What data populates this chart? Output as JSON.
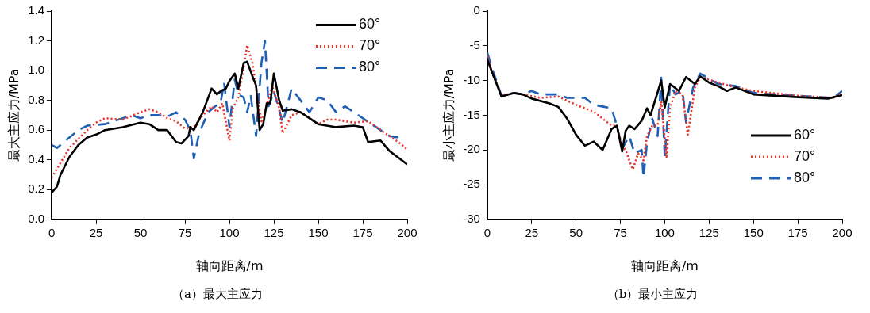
{
  "chart_data": [
    {
      "type": "line",
      "xlabel": "轴向距离/m",
      "ylabel": "最大主应力/MPa",
      "annotations": [
        "（a）最大主应力"
      ],
      "xlim": [
        0,
        200
      ],
      "xticks": [
        0,
        25,
        50,
        75,
        100,
        125,
        150,
        175,
        200
      ],
      "ylim": [
        0,
        1.4
      ],
      "yticks": [
        {
          "value": 0,
          "label": "0.0"
        },
        0.2,
        0.4,
        0.6,
        0.8,
        {
          "value": 1,
          "label": "1.0"
        },
        1.2,
        1.4
      ],
      "grid": false,
      "legend": "top right",
      "marker": "none",
      "series": [
        {
          "name": "60°",
          "color": "#000000",
          "line_style": "solid",
          "x": [
            0,
            3,
            5,
            10,
            15,
            20,
            25,
            30,
            40,
            50,
            55,
            60,
            65,
            70,
            73,
            77,
            78,
            80,
            85,
            90,
            93,
            95,
            98,
            100,
            103,
            105,
            108,
            110,
            113,
            115,
            117,
            119,
            121,
            123,
            125,
            128,
            130,
            135,
            140,
            145,
            150,
            160,
            170,
            175,
            178,
            185,
            190,
            200
          ],
          "values": [
            0.18,
            0.22,
            0.3,
            0.42,
            0.5,
            0.55,
            0.57,
            0.6,
            0.62,
            0.65,
            0.64,
            0.6,
            0.6,
            0.52,
            0.51,
            0.56,
            0.62,
            0.6,
            0.72,
            0.88,
            0.84,
            0.86,
            0.88,
            0.93,
            0.98,
            0.88,
            1.05,
            1.06,
            0.96,
            0.9,
            0.6,
            0.64,
            0.78,
            0.78,
            0.98,
            0.8,
            0.73,
            0.74,
            0.72,
            0.68,
            0.64,
            0.62,
            0.63,
            0.62,
            0.52,
            0.53,
            0.46,
            0.37
          ]
        },
        {
          "name": "70°",
          "color": "#e8332a",
          "line_style": "dotted",
          "x": [
            0,
            5,
            10,
            15,
            20,
            25,
            30,
            40,
            50,
            55,
            60,
            65,
            70,
            75,
            80,
            85,
            90,
            93,
            96,
            100,
            102,
            105,
            108,
            110,
            113,
            116,
            118,
            120,
            124,
            128,
            130,
            135,
            140,
            145,
            150,
            155,
            160,
            170,
            178,
            185,
            195,
            200
          ],
          "values": [
            0.28,
            0.38,
            0.48,
            0.54,
            0.6,
            0.65,
            0.68,
            0.67,
            0.72,
            0.74,
            0.72,
            0.68,
            0.66,
            0.61,
            0.62,
            0.7,
            0.76,
            0.72,
            0.78,
            0.53,
            0.75,
            0.82,
            1.02,
            1.17,
            1.05,
            0.8,
            0.66,
            0.72,
            0.9,
            0.75,
            0.58,
            0.7,
            0.72,
            0.68,
            0.64,
            0.67,
            0.67,
            0.65,
            0.66,
            0.6,
            0.52,
            0.47
          ]
        },
        {
          "name": "80°",
          "color": "#1f5fb4",
          "line_style": "dashed",
          "x": [
            0,
            3,
            5,
            10,
            15,
            20,
            30,
            40,
            45,
            50,
            55,
            60,
            65,
            70,
            75,
            78,
            80,
            83,
            88,
            92,
            95,
            97,
            100,
            103,
            105,
            108,
            110,
            112,
            115,
            118,
            120,
            122,
            125,
            130,
            135,
            140,
            145,
            150,
            155,
            160,
            165,
            170,
            180,
            190,
            195
          ],
          "values": [
            0.5,
            0.48,
            0.5,
            0.55,
            0.6,
            0.63,
            0.64,
            0.68,
            0.7,
            0.68,
            0.7,
            0.7,
            0.69,
            0.72,
            0.67,
            0.6,
            0.41,
            0.58,
            0.72,
            0.76,
            0.78,
            0.92,
            0.62,
            0.94,
            0.84,
            0.82,
            0.72,
            0.83,
            0.56,
            1.05,
            1.2,
            0.76,
            0.86,
            0.65,
            0.88,
            0.8,
            0.72,
            0.82,
            0.8,
            0.72,
            0.76,
            0.72,
            0.64,
            0.56,
            0.55
          ]
        }
      ]
    },
    {
      "type": "line",
      "xlabel": "轴向距离/m",
      "ylabel": "最小主应力/MPa",
      "annotations": [
        "（b）最小主应力"
      ],
      "xlim": [
        0,
        200
      ],
      "xticks": [
        0,
        25,
        50,
        75,
        100,
        125,
        150,
        175,
        200
      ],
      "ylim": [
        -30,
        0
      ],
      "yticks": [
        -30,
        -25,
        -20,
        -15,
        -10,
        -5,
        0
      ],
      "grid": false,
      "legend": "right",
      "marker": "none",
      "series": [
        {
          "name": "60°",
          "color": "#000000",
          "line_style": "solid",
          "x": [
            0,
            3,
            8,
            15,
            20,
            25,
            35,
            40,
            45,
            50,
            55,
            60,
            65,
            70,
            73,
            76,
            78,
            80,
            83,
            87,
            90,
            92,
            95,
            98,
            100,
            103,
            108,
            112,
            117,
            120,
            125,
            130,
            135,
            140,
            150,
            175,
            192,
            200
          ],
          "values": [
            -7,
            -9,
            -12.3,
            -11.8,
            -12,
            -12.6,
            -13.3,
            -13.8,
            -15.5,
            -17.8,
            -19.4,
            -18.8,
            -20,
            -17,
            -16.5,
            -20.2,
            -17.2,
            -16.5,
            -17,
            -15.8,
            -14,
            -15,
            -12.5,
            -10,
            -13.9,
            -10.5,
            -11.5,
            -9.5,
            -10.5,
            -9.4,
            -10.3,
            -10.8,
            -11.5,
            -11,
            -12,
            -12.4,
            -12.6,
            -12.1
          ]
        },
        {
          "name": "70°",
          "color": "#e8332a",
          "line_style": "dotted",
          "x": [
            0,
            3,
            8,
            15,
            20,
            30,
            40,
            50,
            60,
            70,
            73,
            76,
            78,
            80,
            82,
            85,
            88,
            90,
            93,
            96,
            98,
            101,
            103,
            106,
            110,
            113,
            117,
            120,
            130,
            140,
            150,
            175,
            195,
            200
          ],
          "values": [
            -6.5,
            -9,
            -12.2,
            -11.8,
            -12,
            -12.5,
            -12.3,
            -13.5,
            -14.5,
            -16.5,
            -16.5,
            -19.5,
            -20,
            -21.5,
            -22.8,
            -20.5,
            -21.5,
            -18,
            -16.5,
            -16.5,
            -13,
            -21,
            -14,
            -11.5,
            -12,
            -17.8,
            -11,
            -9.5,
            -10.3,
            -11,
            -11.5,
            -12.2,
            -12.5,
            -11.8
          ]
        },
        {
          "name": "80°",
          "color": "#1f5fb4",
          "line_style": "dashed",
          "x": [
            0,
            3,
            8,
            15,
            20,
            25,
            30,
            40,
            45,
            55,
            60,
            70,
            73,
            76,
            80,
            83,
            87,
            88,
            90,
            93,
            96,
            98,
            100,
            103,
            106,
            110,
            112,
            116,
            120,
            130,
            140,
            150,
            175,
            195,
            200
          ],
          "values": [
            -6,
            -8.5,
            -12.2,
            -11.8,
            -12,
            -11.5,
            -12,
            -12,
            -12.5,
            -12.5,
            -13.5,
            -14,
            -16.5,
            -19.8,
            -18,
            -20.5,
            -20,
            -24,
            -19,
            -15.5,
            -18,
            -9.6,
            -21,
            -10.5,
            -12,
            -11.5,
            -16,
            -11,
            -9,
            -10.5,
            -10.8,
            -11.8,
            -12.2,
            -12.5,
            -11.5
          ]
        }
      ]
    }
  ]
}
